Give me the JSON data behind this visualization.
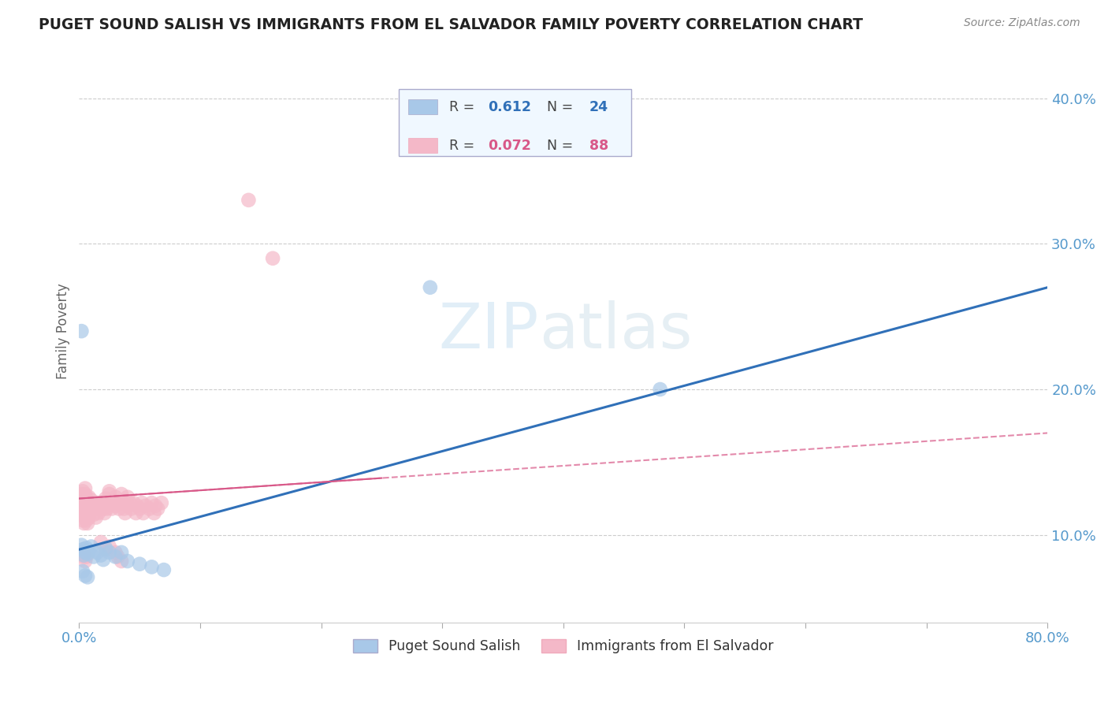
{
  "title": "PUGET SOUND SALISH VS IMMIGRANTS FROM EL SALVADOR FAMILY POVERTY CORRELATION CHART",
  "source": "Source: ZipAtlas.com",
  "ylabel": "Family Poverty",
  "ytick_values": [
    0.1,
    0.2,
    0.3,
    0.4
  ],
  "ytick_labels": [
    "10.0%",
    "20.0%",
    "30.0%",
    "40.0%"
  ],
  "xlim": [
    0.0,
    0.8
  ],
  "ylim": [
    0.04,
    0.44
  ],
  "series1_color": "#a8c8e8",
  "series2_color": "#f4b8c8",
  "trendline1_color": "#3070b8",
  "trendline2_color": "#d85888",
  "trendline2_linestyle": "--",
  "watermark_zip": "ZIP",
  "watermark_atlas": "atlas",
  "legend_box_facecolor": "#f0f8ff",
  "legend_box_edgecolor": "#aaaacc",
  "r1_color": "#3070b8",
  "r2_color": "#d85888",
  "series1_label": "Puget Sound Salish",
  "series2_label": "Immigrants from El Salvador",
  "series1_points": [
    [
      0.002,
      0.093
    ],
    [
      0.003,
      0.09
    ],
    [
      0.004,
      0.086
    ],
    [
      0.005,
      0.088
    ],
    [
      0.006,
      0.091
    ],
    [
      0.007,
      0.087
    ],
    [
      0.008,
      0.089
    ],
    [
      0.01,
      0.092
    ],
    [
      0.012,
      0.085
    ],
    [
      0.015,
      0.088
    ],
    [
      0.018,
      0.086
    ],
    [
      0.02,
      0.083
    ],
    [
      0.022,
      0.091
    ],
    [
      0.025,
      0.088
    ],
    [
      0.03,
      0.085
    ],
    [
      0.035,
      0.088
    ],
    [
      0.04,
      0.082
    ],
    [
      0.05,
      0.08
    ],
    [
      0.06,
      0.078
    ],
    [
      0.07,
      0.076
    ],
    [
      0.003,
      0.075
    ],
    [
      0.005,
      0.072
    ],
    [
      0.007,
      0.071
    ],
    [
      0.002,
      0.24
    ],
    [
      0.29,
      0.27
    ],
    [
      0.48,
      0.2
    ]
  ],
  "series2_points": [
    [
      0.001,
      0.125
    ],
    [
      0.002,
      0.12
    ],
    [
      0.002,
      0.128
    ],
    [
      0.003,
      0.118
    ],
    [
      0.003,
      0.122
    ],
    [
      0.003,
      0.13
    ],
    [
      0.004,
      0.115
    ],
    [
      0.004,
      0.12
    ],
    [
      0.004,
      0.125
    ],
    [
      0.005,
      0.118
    ],
    [
      0.005,
      0.122
    ],
    [
      0.005,
      0.128
    ],
    [
      0.005,
      0.132
    ],
    [
      0.006,
      0.116
    ],
    [
      0.006,
      0.12
    ],
    [
      0.006,
      0.125
    ],
    [
      0.007,
      0.112
    ],
    [
      0.007,
      0.118
    ],
    [
      0.007,
      0.122
    ],
    [
      0.008,
      0.115
    ],
    [
      0.008,
      0.12
    ],
    [
      0.008,
      0.126
    ],
    [
      0.009,
      0.118
    ],
    [
      0.01,
      0.12
    ],
    [
      0.01,
      0.124
    ],
    [
      0.011,
      0.118
    ],
    [
      0.012,
      0.114
    ],
    [
      0.012,
      0.118
    ],
    [
      0.013,
      0.122
    ],
    [
      0.014,
      0.112
    ],
    [
      0.015,
      0.118
    ],
    [
      0.015,
      0.122
    ],
    [
      0.016,
      0.115
    ],
    [
      0.017,
      0.118
    ],
    [
      0.018,
      0.122
    ],
    [
      0.019,
      0.12
    ],
    [
      0.02,
      0.118
    ],
    [
      0.02,
      0.122
    ],
    [
      0.021,
      0.115
    ],
    [
      0.022,
      0.12
    ],
    [
      0.022,
      0.125
    ],
    [
      0.023,
      0.118
    ],
    [
      0.025,
      0.122
    ],
    [
      0.025,
      0.128
    ],
    [
      0.025,
      0.13
    ],
    [
      0.027,
      0.118
    ],
    [
      0.028,
      0.122
    ],
    [
      0.03,
      0.12
    ],
    [
      0.03,
      0.126
    ],
    [
      0.032,
      0.122
    ],
    [
      0.033,
      0.118
    ],
    [
      0.035,
      0.122
    ],
    [
      0.035,
      0.128
    ],
    [
      0.037,
      0.118
    ],
    [
      0.038,
      0.115
    ],
    [
      0.04,
      0.12
    ],
    [
      0.04,
      0.126
    ],
    [
      0.042,
      0.122
    ],
    [
      0.043,
      0.118
    ],
    [
      0.045,
      0.122
    ],
    [
      0.047,
      0.115
    ],
    [
      0.048,
      0.12
    ],
    [
      0.05,
      0.118
    ],
    [
      0.052,
      0.122
    ],
    [
      0.053,
      0.115
    ],
    [
      0.055,
      0.12
    ],
    [
      0.058,
      0.118
    ],
    [
      0.06,
      0.122
    ],
    [
      0.062,
      0.115
    ],
    [
      0.063,
      0.12
    ],
    [
      0.065,
      0.118
    ],
    [
      0.068,
      0.122
    ],
    [
      0.002,
      0.115
    ],
    [
      0.003,
      0.11
    ],
    [
      0.004,
      0.108
    ],
    [
      0.005,
      0.112
    ],
    [
      0.006,
      0.11
    ],
    [
      0.007,
      0.108
    ],
    [
      0.008,
      0.112
    ],
    [
      0.003,
      0.088
    ],
    [
      0.004,
      0.085
    ],
    [
      0.005,
      0.082
    ],
    [
      0.006,
      0.085
    ],
    [
      0.018,
      0.095
    ],
    [
      0.022,
      0.09
    ],
    [
      0.025,
      0.092
    ],
    [
      0.03,
      0.088
    ],
    [
      0.032,
      0.085
    ],
    [
      0.035,
      0.082
    ],
    [
      0.14,
      0.33
    ],
    [
      0.16,
      0.29
    ]
  ]
}
